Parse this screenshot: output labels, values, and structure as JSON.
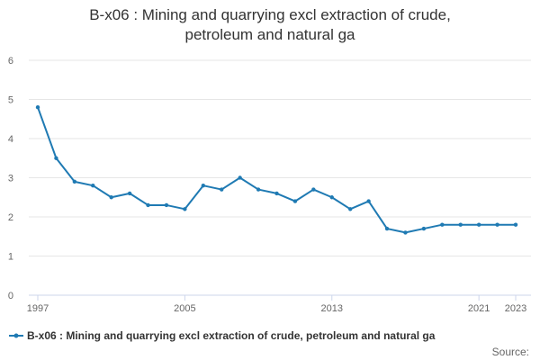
{
  "chart_data": {
    "type": "line",
    "title_lines": [
      "B-x06 : Mining and quarrying excl extraction of crude,",
      "petroleum and natural ga"
    ],
    "xlabel": "",
    "ylabel": "",
    "x": [
      1997,
      1998,
      1999,
      2000,
      2001,
      2002,
      2003,
      2004,
      2005,
      2006,
      2007,
      2008,
      2009,
      2010,
      2011,
      2012,
      2013,
      2014,
      2015,
      2016,
      2017,
      2018,
      2019,
      2020,
      2021,
      2022,
      2023
    ],
    "x_ticks": [
      1997,
      2005,
      2013,
      2021,
      2023
    ],
    "xlim": [
      1997,
      2023
    ],
    "ylim": [
      0,
      6
    ],
    "y_ticks": [
      0,
      1,
      2,
      3,
      4,
      5,
      6
    ],
    "grid": true,
    "legend_position": "bottom-left",
    "series": [
      {
        "name": "B-x06 : Mining and quarrying excl extraction of crude, petroleum and natural ga",
        "color": "#1f7ab3",
        "values": [
          4.8,
          3.5,
          2.9,
          2.8,
          2.5,
          2.6,
          2.3,
          2.3,
          2.2,
          2.8,
          2.7,
          3.0,
          2.7,
          2.6,
          2.4,
          2.7,
          2.5,
          2.2,
          2.4,
          1.7,
          1.6,
          1.7,
          1.8,
          1.8,
          1.8,
          1.8,
          1.8
        ]
      }
    ]
  },
  "legend_label": "B-x06 : Mining and quarrying excl extraction of crude, petroleum and natural ga",
  "source_label": "Source:",
  "colors": {
    "series": "#1f7ab3",
    "grid": "#e6e6e6",
    "axis": "#ccd6eb",
    "tick_text": "#666666"
  }
}
